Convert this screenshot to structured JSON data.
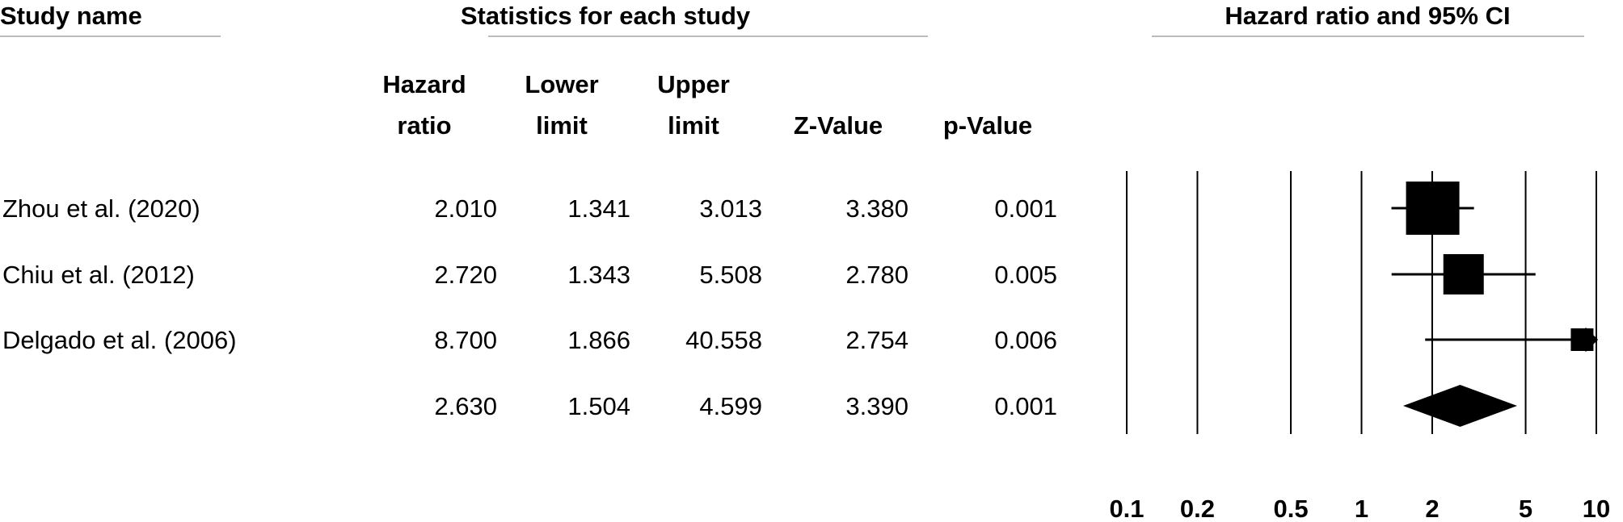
{
  "chart_data": {
    "type": "forest",
    "headers": {
      "study": "Study name",
      "statistics": "Statistics for each study",
      "plot": "Hazard ratio and 95% CI"
    },
    "categories": [
      "Zhou et al. (2020)",
      "Chiu et al. (2012)",
      "Delgado et al. (2006)",
      null
    ],
    "series": [
      {
        "header": [
          "Hazard",
          "ratio"
        ],
        "values": [
          2.01,
          2.72,
          8.7,
          2.63
        ],
        "value_labels": [
          "2.010",
          "2.720",
          "8.700",
          "2.630"
        ]
      },
      {
        "header": [
          "Lower",
          "limit"
        ],
        "values": [
          1.341,
          1.343,
          1.866,
          1.504
        ],
        "value_labels": [
          "1.341",
          "1.343",
          "1.866",
          "1.504"
        ]
      },
      {
        "header": [
          "Upper",
          "limit"
        ],
        "values": [
          3.013,
          5.508,
          40.558,
          4.599
        ],
        "value_labels": [
          "3.013",
          "5.508",
          "40.558",
          "4.599"
        ]
      },
      {
        "header": [
          "Z-Value"
        ],
        "values": [
          3.38,
          2.78,
          2.754,
          3.39
        ],
        "value_labels": [
          "3.380",
          "2.780",
          "2.754",
          "3.390"
        ]
      },
      {
        "header": [
          "p-Value"
        ],
        "values": [
          0.001,
          0.005,
          0.006,
          0.001
        ],
        "value_labels": [
          "0.001",
          "0.005",
          "0.006",
          "0.001"
        ]
      }
    ],
    "xscale": "log",
    "xlim": [
      0.1,
      10
    ],
    "xticks": [
      0.1,
      0.2,
      0.5,
      1,
      2,
      5,
      10
    ],
    "grid": true,
    "color": "#000000"
  }
}
